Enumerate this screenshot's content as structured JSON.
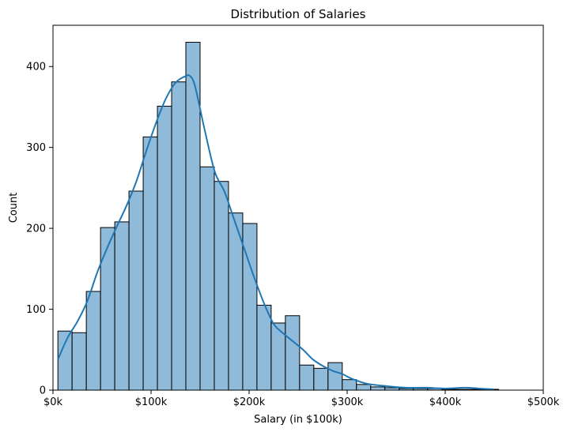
{
  "chart_data": {
    "type": "bar",
    "subtype": "histogram-with-kde",
    "title": "Distribution of Salaries",
    "xlabel": "Salary (in $100k)",
    "ylabel": "Count",
    "xlim": [
      0,
      500000
    ],
    "ylim": [
      0,
      451
    ],
    "grid": false,
    "legend": "none",
    "x_ticks": [
      {
        "value": 0,
        "label": "$0k"
      },
      {
        "value": 100000,
        "label": "$100k"
      },
      {
        "value": 200000,
        "label": "$200k"
      },
      {
        "value": 300000,
        "label": "$300k"
      },
      {
        "value": 400000,
        "label": "$400k"
      },
      {
        "value": 500000,
        "label": "$500k"
      }
    ],
    "y_ticks": [
      {
        "value": 0,
        "label": "0"
      },
      {
        "value": 100,
        "label": "100"
      },
      {
        "value": 200,
        "label": "200"
      },
      {
        "value": 300,
        "label": "300"
      },
      {
        "value": 400,
        "label": "400"
      }
    ],
    "bins": [
      {
        "start": 5000,
        "end": 19500,
        "count": 73
      },
      {
        "start": 19500,
        "end": 34000,
        "count": 71
      },
      {
        "start": 34000,
        "end": 48500,
        "count": 122
      },
      {
        "start": 48500,
        "end": 63000,
        "count": 201
      },
      {
        "start": 63000,
        "end": 77500,
        "count": 208
      },
      {
        "start": 77500,
        "end": 92000,
        "count": 246
      },
      {
        "start": 92000,
        "end": 106500,
        "count": 313
      },
      {
        "start": 106500,
        "end": 121000,
        "count": 351
      },
      {
        "start": 121000,
        "end": 135500,
        "count": 381
      },
      {
        "start": 135500,
        "end": 150000,
        "count": 430
      },
      {
        "start": 150000,
        "end": 164500,
        "count": 276
      },
      {
        "start": 164500,
        "end": 179000,
        "count": 258
      },
      {
        "start": 179000,
        "end": 193500,
        "count": 219
      },
      {
        "start": 193500,
        "end": 208000,
        "count": 206
      },
      {
        "start": 208000,
        "end": 222500,
        "count": 105
      },
      {
        "start": 222500,
        "end": 237000,
        "count": 83
      },
      {
        "start": 237000,
        "end": 251500,
        "count": 92
      },
      {
        "start": 251500,
        "end": 266000,
        "count": 31
      },
      {
        "start": 266000,
        "end": 280500,
        "count": 27
      },
      {
        "start": 280500,
        "end": 295000,
        "count": 34
      },
      {
        "start": 295000,
        "end": 309500,
        "count": 13
      },
      {
        "start": 309500,
        "end": 324000,
        "count": 7
      },
      {
        "start": 324000,
        "end": 338500,
        "count": 4
      },
      {
        "start": 338500,
        "end": 353000,
        "count": 3
      },
      {
        "start": 353000,
        "end": 367500,
        "count": 2
      },
      {
        "start": 367500,
        "end": 382000,
        "count": 2
      },
      {
        "start": 382000,
        "end": 396500,
        "count": 2
      },
      {
        "start": 396500,
        "end": 411000,
        "count": 1
      },
      {
        "start": 411000,
        "end": 425500,
        "count": 1
      },
      {
        "start": 425500,
        "end": 440000,
        "count": 1
      },
      {
        "start": 440000,
        "end": 454500,
        "count": 1
      }
    ],
    "kde": {
      "x": [
        5000,
        15000,
        25000,
        35000,
        45000,
        55000,
        65000,
        75000,
        85000,
        95000,
        105000,
        115000,
        125000,
        135000,
        140000,
        145000,
        155000,
        165000,
        175000,
        185000,
        195000,
        205000,
        215000,
        225000,
        235000,
        245000,
        255000,
        265000,
        275000,
        285000,
        295000,
        305000,
        320000,
        340000,
        360000,
        380000,
        400000,
        420000,
        435000,
        450000
      ],
      "y": [
        38,
        65,
        85,
        110,
        145,
        175,
        202,
        228,
        258,
        295,
        330,
        360,
        380,
        388,
        388,
        375,
        320,
        270,
        245,
        210,
        175,
        140,
        108,
        82,
        70,
        60,
        50,
        38,
        30,
        24,
        20,
        14,
        8,
        5,
        3,
        3,
        2,
        3,
        2,
        1
      ]
    },
    "colors": {
      "bar_fill": "#8fbad9",
      "bar_edge": "#000000",
      "kde_line": "#1f77b4"
    }
  }
}
